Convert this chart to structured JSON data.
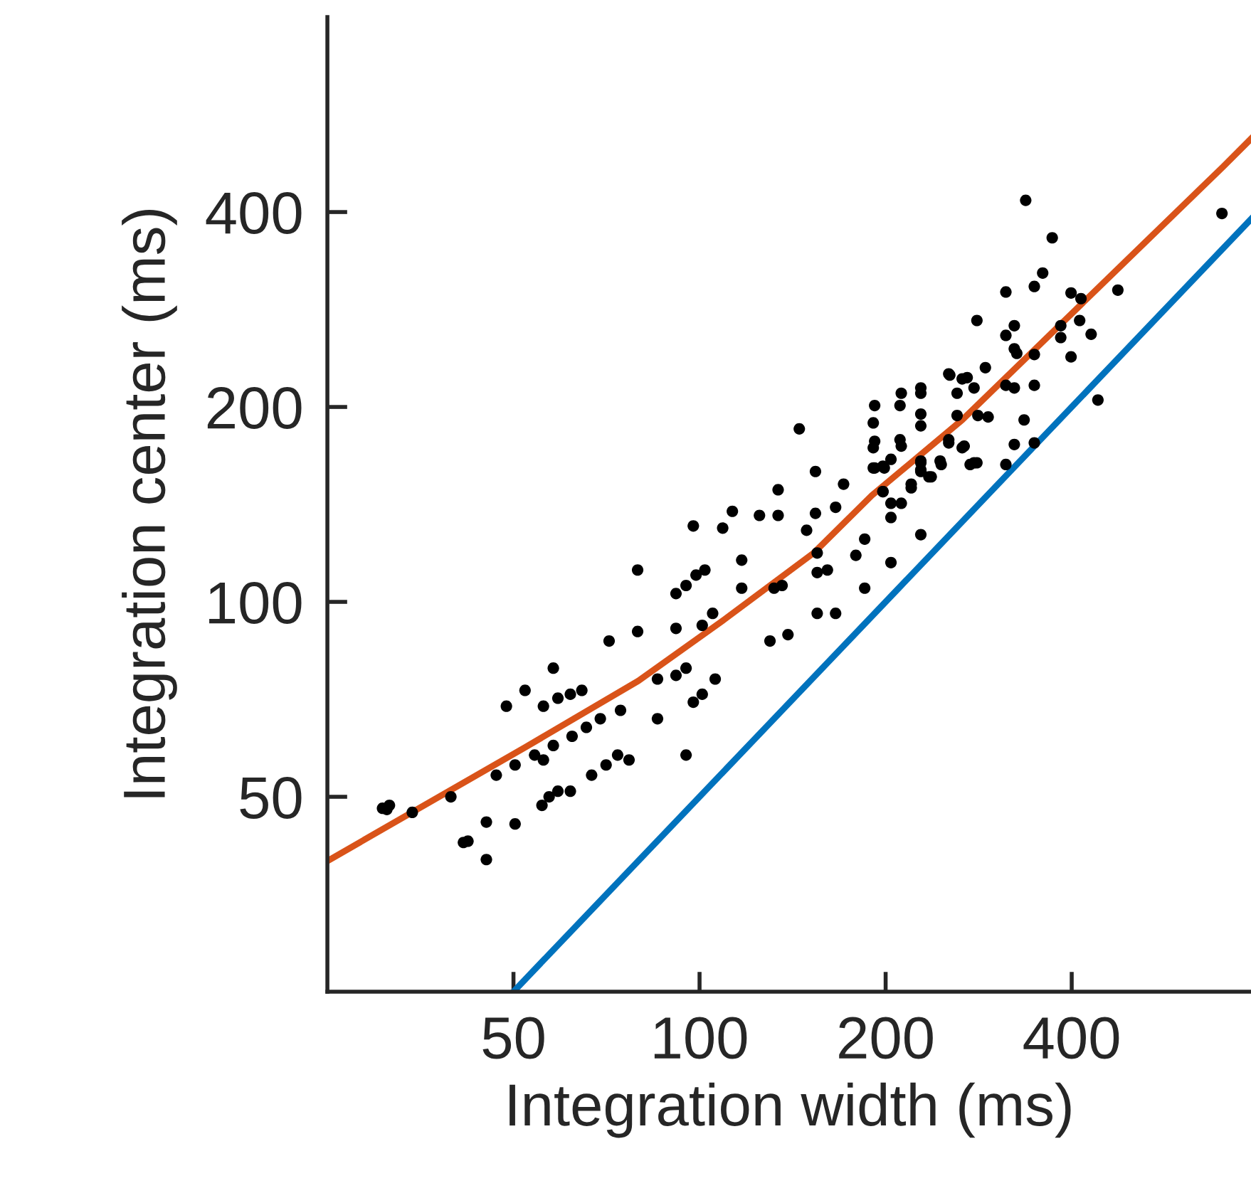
{
  "chart_data": {
    "type": "scatter",
    "xlabel": "Integration width (ms)",
    "ylabel": "Integration center (ms)",
    "log": "xy",
    "xlim": [
      25,
      780
    ],
    "ylim": [
      25,
      800
    ],
    "xticks": [
      50,
      100,
      200,
      400
    ],
    "yticks": [
      50,
      100,
      200,
      400
    ],
    "series": [
      {
        "marker": "circle",
        "color": "#000000",
        "x": [
          30.7,
          31.2,
          31.5,
          34.3,
          39.6,
          41.5,
          42.2,
          45.2,
          45.2,
          46.9,
          48.7,
          50.3,
          50.3,
          52.2,
          54.1,
          55.9,
          55.6,
          57.1,
          59.0,
          61.8,
          55.9,
          59.0,
          61.8,
          64.5,
          58.0,
          58.0,
          62.2,
          65.6,
          69.1,
          66.9,
          70.6,
          73.7,
          76.9,
          71.4,
          74.5,
          79.4,
          79.4,
          85.5,
          85.5,
          91.6,
          95.1,
          98.7,
          102,
          91.6,
          91.6,
          95.1,
          95.1,
          97.7,
          101,
          105,
          101,
          106,
          97.7,
          109,
          113,
          117,
          117,
          125,
          134,
          134,
          130,
          139,
          132,
          136,
          145,
          149,
          154,
          154,
          155,
          155,
          161,
          155,
          166,
          166,
          171,
          179,
          185,
          185,
          192,
          192,
          192,
          199,
          198,
          204,
          204,
          212,
          204,
          204,
          212,
          212,
          228,
          228,
          228,
          228,
          235,
          220,
          228,
          245,
          253,
          266,
          261,
          253,
          266,
          337,
          372,
          359,
          348,
          313,
          399,
          414,
          475,
          281,
          323,
          313,
          323,
          326,
          384,
          412,
          384,
          430,
          348,
          399,
          254,
          271,
          278,
          290,
          313,
          323,
          348,
          228,
          211,
          261,
          282,
          293,
          335,
          191,
          228,
          441,
          211,
          253,
          268,
          278,
          191,
          323,
          348,
          191,
          198,
          228,
          228,
          237,
          246,
          274,
          281,
          313,
          198,
          220,
          700
        ],
        "values": [
          48,
          47.8,
          48.5,
          47.3,
          50,
          42.5,
          42.7,
          45.7,
          40.0,
          54,
          69,
          45.4,
          56,
          73,
          58,
          57,
          48.5,
          50,
          51,
          51,
          69,
          71,
          72,
          73,
          79,
          60,
          62,
          64,
          66,
          54,
          56,
          58,
          57,
          87,
          68,
          112,
          90,
          76,
          66,
          103,
          106,
          110,
          112,
          91,
          77,
          79,
          58,
          70,
          72,
          96,
          92,
          76,
          131,
          130,
          138,
          116,
          105,
          136,
          136,
          149,
          87,
          89,
          105,
          106,
          185,
          129,
          159,
          137,
          119,
          111,
          112,
          96,
          96,
          140,
          152,
          118,
          125,
          105,
          201,
          177,
          161,
          161,
          148,
          166,
          142,
          142,
          135,
          115,
          210,
          174,
          214,
          195,
          165,
          160,
          156,
          150,
          127,
          165,
          225,
          221,
          210,
          176,
          173,
          417,
          365,
          322,
          307,
          301,
          300,
          294,
          303,
          272,
          267,
          258,
          246,
          242,
          267,
          272,
          256,
          259,
          241,
          239,
          224,
          222,
          214,
          230,
          216,
          214,
          216,
          210,
          201,
          194,
          194,
          193,
          191,
          189,
          187,
          205,
          178,
          178,
          174,
          164,
          173,
          175,
          176,
          161,
          162,
          164,
          159,
          156,
          163,
          163,
          164,
          163,
          148,
          152,
          398
        ]
      },
      {
        "type": "line",
        "marker": "none",
        "color": "#0072bd",
        "x": [
          50,
          780
        ],
        "values": [
          25,
          390
        ]
      },
      {
        "type": "line",
        "marker": "none",
        "color": "#d95319",
        "x": [
          25,
          52.2,
          79.6,
          109.8,
          153,
          190,
          266,
          703,
          780
        ],
        "values": [
          39.8,
          59.6,
          75.5,
          94.0,
          119,
          146,
          191,
          470,
          519
        ]
      }
    ]
  }
}
